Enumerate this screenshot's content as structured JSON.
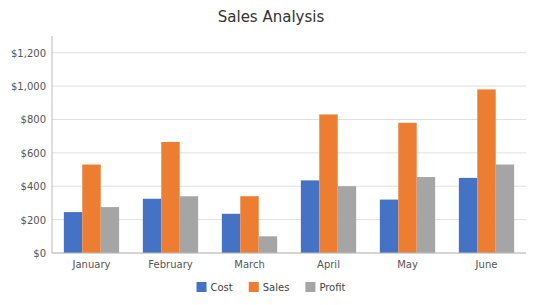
{
  "chart_data": {
    "type": "bar",
    "title": "Sales Analysis",
    "categories": [
      "January",
      "February",
      "March",
      "April",
      "May",
      "June"
    ],
    "series": [
      {
        "name": "Cost",
        "color": "#4472C4",
        "values": [
          245,
          325,
          235,
          435,
          320,
          450
        ]
      },
      {
        "name": "Sales",
        "color": "#ED7D31",
        "values": [
          530,
          665,
          340,
          830,
          780,
          980
        ]
      },
      {
        "name": "Profit",
        "color": "#A5A5A5",
        "values": [
          275,
          340,
          100,
          400,
          455,
          530
        ]
      }
    ],
    "ylim": [
      0,
      1300
    ],
    "yticks": [
      {
        "value": 0,
        "label": "$0"
      },
      {
        "value": 200,
        "label": "$200"
      },
      {
        "value": 400,
        "label": "$400"
      },
      {
        "value": 600,
        "label": "$600"
      },
      {
        "value": 800,
        "label": "$800"
      },
      {
        "value": 1000,
        "label": "$1,000"
      },
      {
        "value": 1200,
        "label": "$1,200"
      }
    ],
    "grid": true,
    "legend": "bottom"
  }
}
